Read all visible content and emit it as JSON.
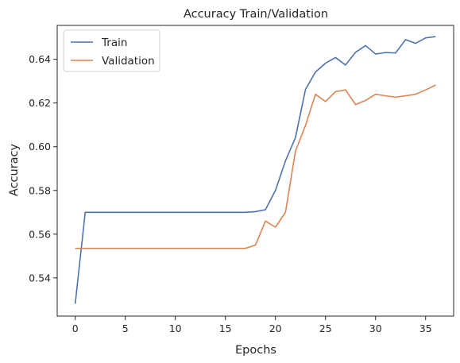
{
  "chart_data": {
    "type": "line",
    "title": "Accuracy Train/Validation",
    "xlabel": "Epochs",
    "ylabel": "Accuracy",
    "xlim": [
      -1.8,
      37.8
    ],
    "ylim": [
      0.5225,
      0.6555
    ],
    "xticks": [
      0,
      5,
      10,
      15,
      20,
      25,
      30,
      35
    ],
    "yticks": [
      0.54,
      0.56,
      0.58,
      0.6,
      0.62,
      0.64
    ],
    "ytick_labels": [
      "0.54",
      "0.56",
      "0.58",
      "0.60",
      "0.62",
      "0.64"
    ],
    "grid": false,
    "legend_position": "top-left",
    "x": [
      0,
      1,
      2,
      3,
      4,
      5,
      6,
      7,
      8,
      9,
      10,
      11,
      12,
      13,
      14,
      15,
      16,
      17,
      18,
      19,
      20,
      21,
      22,
      23,
      24,
      25,
      26,
      27,
      28,
      29,
      30,
      31,
      32,
      33,
      34,
      35,
      36
    ],
    "series": [
      {
        "name": "Train",
        "color": "#4c72b0",
        "values": [
          0.5282,
          0.57,
          0.57,
          0.57,
          0.57,
          0.57,
          0.57,
          0.57,
          0.57,
          0.57,
          0.57,
          0.57,
          0.57,
          0.57,
          0.57,
          0.57,
          0.57,
          0.57,
          0.5703,
          0.5712,
          0.58,
          0.5935,
          0.6042,
          0.6262,
          0.6342,
          0.6382,
          0.6408,
          0.6374,
          0.6432,
          0.6463,
          0.6424,
          0.6431,
          0.6429,
          0.649,
          0.6473,
          0.6498,
          0.6504
        ]
      },
      {
        "name": "Validation",
        "color": "#dd8452",
        "values": [
          0.5535,
          0.5535,
          0.5535,
          0.5535,
          0.5535,
          0.5535,
          0.5535,
          0.5535,
          0.5535,
          0.5535,
          0.5535,
          0.5535,
          0.5535,
          0.5535,
          0.5535,
          0.5535,
          0.5535,
          0.5535,
          0.555,
          0.566,
          0.5632,
          0.57,
          0.598,
          0.6097,
          0.624,
          0.6207,
          0.6252,
          0.626,
          0.6193,
          0.6212,
          0.624,
          0.6233,
          0.6227,
          0.6233,
          0.624,
          0.626,
          0.6282
        ]
      }
    ]
  }
}
